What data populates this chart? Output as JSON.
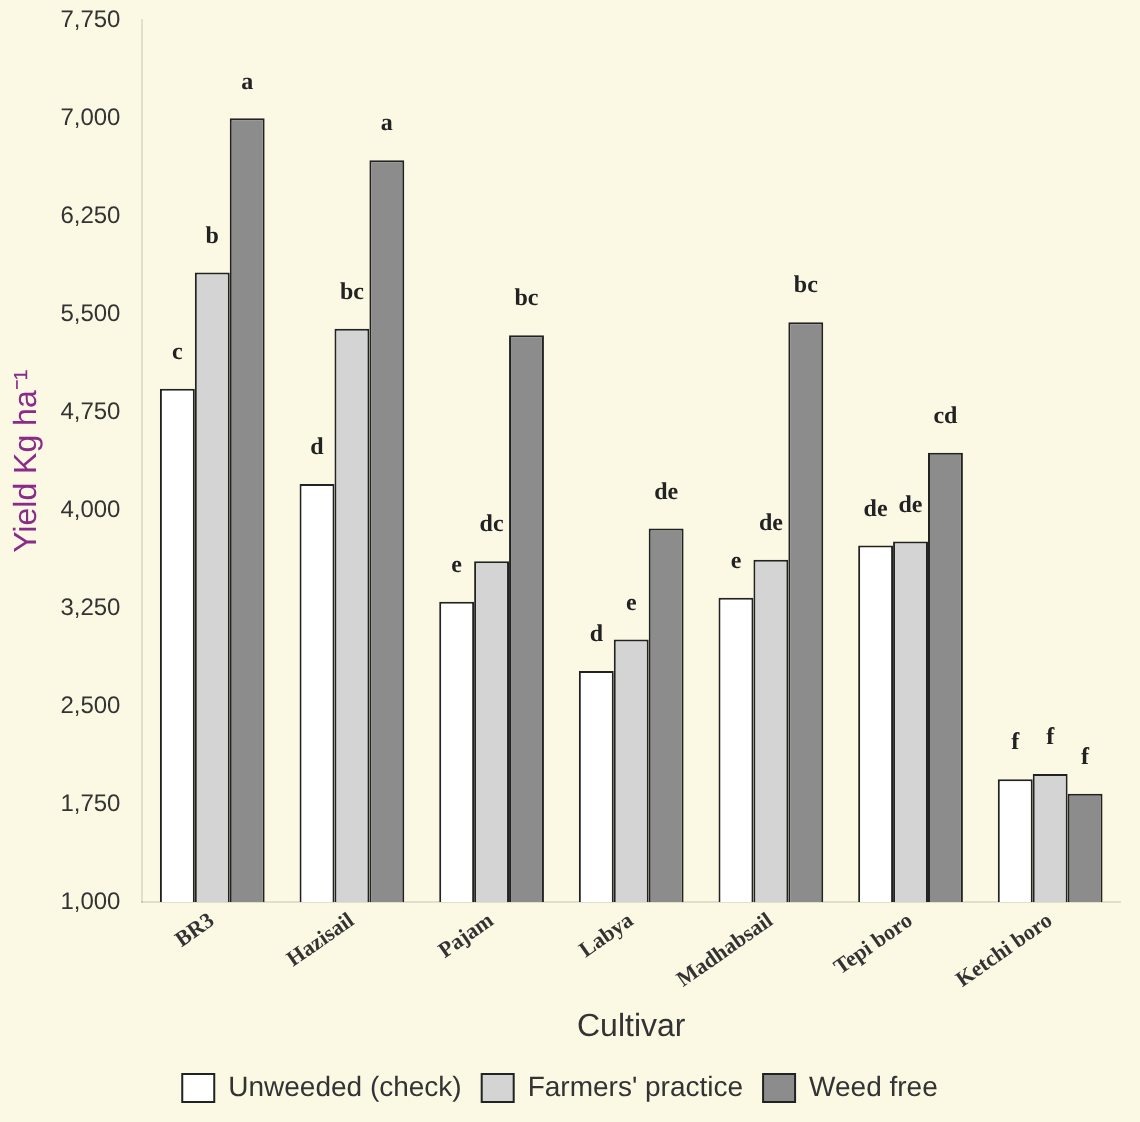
{
  "chart_data": {
    "type": "bar",
    "xlabel": "Cultivar",
    "ylabel": "Yield Kg ha⁻¹",
    "categories": [
      "BR3",
      "Hazisail",
      "Pajam",
      "Labya",
      "Madhabsail",
      "Tepi boro",
      "Ketchi boro"
    ],
    "series": [
      {
        "name": "Unweeded (check)",
        "color": "#ffffff",
        "values": [
          4930,
          4200,
          3300,
          2770,
          3330,
          3730,
          1940
        ],
        "value_labels": [
          "c",
          "d",
          "e",
          "d",
          "e",
          "de",
          "f"
        ]
      },
      {
        "name": "Farmers' practice",
        "color": "#d4d4d4",
        "values": [
          5820,
          5390,
          3610,
          3010,
          3620,
          3760,
          1980
        ],
        "value_labels": [
          "b",
          "bc",
          "dc",
          "e",
          "de",
          "de",
          "f"
        ]
      },
      {
        "name": "Weed free",
        "color": "#8c8c8c",
        "values": [
          7000,
          6680,
          5340,
          3860,
          5440,
          4440,
          1830
        ],
        "value_labels": [
          "a",
          "a",
          "bc",
          "de",
          "bc",
          "cd",
          "f"
        ]
      }
    ],
    "ylim": [
      1000,
      7750
    ],
    "yticks": [
      {
        "value": 1000,
        "label": "1,000"
      },
      {
        "value": 1750,
        "label": "1,750"
      },
      {
        "value": 2500,
        "label": "2,500"
      },
      {
        "value": 3250,
        "label": "3,250"
      },
      {
        "value": 4000,
        "label": "4,000"
      },
      {
        "value": 4750,
        "label": "4,750"
      },
      {
        "value": 5500,
        "label": "5,500"
      },
      {
        "value": 6250,
        "label": "6,250"
      },
      {
        "value": 7000,
        "label": "7,000"
      },
      {
        "value": 7750,
        "label": "7,750"
      }
    ],
    "grid": false,
    "legend": "bottom"
  }
}
